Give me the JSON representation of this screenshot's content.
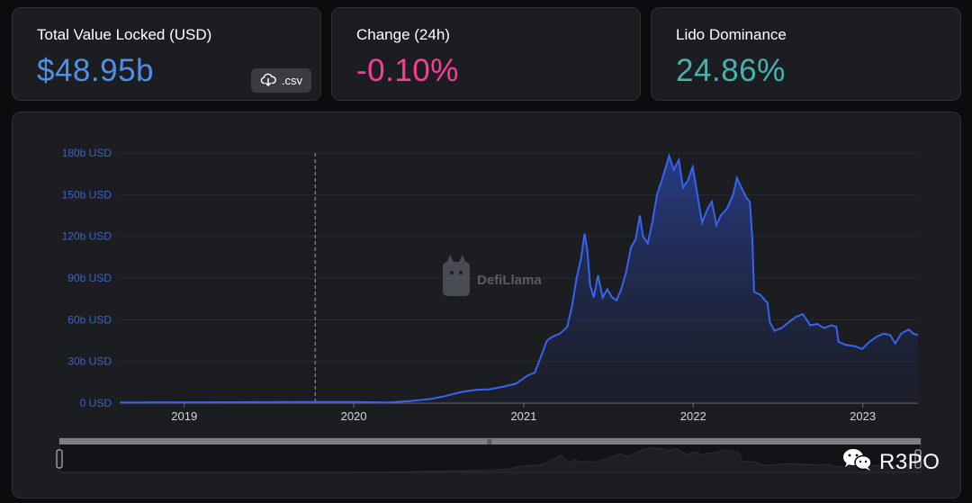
{
  "stats": {
    "tvl": {
      "label": "Total Value Locked (USD)",
      "value": "$48.95b",
      "color": "#4f8fea"
    },
    "change": {
      "label": "Change (24h)",
      "value": "-0.10%",
      "color": "#fd3c99"
    },
    "dominance": {
      "label": "Lido Dominance",
      "value": "24.86%",
      "color": "#46b3b3"
    }
  },
  "csv_button": {
    "label": ".csv",
    "icon": "cloud-download-icon"
  },
  "watermark_brand": "DefiLlama",
  "overlay_watermark": {
    "text": "R3PO",
    "icon": "wechat-icon"
  },
  "chart_data": {
    "type": "area",
    "ytick_labels": [
      "0 USD",
      "30b USD",
      "60b USD",
      "90b USD",
      "120b USD",
      "150b USD",
      "180b USD"
    ],
    "ylim": [
      0,
      180
    ],
    "xtick_labels": [
      "2019",
      "2020",
      "2021",
      "2022",
      "2023"
    ],
    "xlim": [
      "2018-08-15",
      "2023-04-30"
    ],
    "series": [
      {
        "values_unit": "billion USD",
        "points": [
          [
            "2018-08-15",
            0.5
          ],
          [
            "2019-01-01",
            0.6
          ],
          [
            "2019-06-01",
            0.7
          ],
          [
            "2019-10-10",
            0.8
          ],
          [
            "2020-01-01",
            0.8
          ],
          [
            "2020-03-15",
            0.5
          ],
          [
            "2020-05-01",
            1.5
          ],
          [
            "2020-06-15",
            3.0
          ],
          [
            "2020-07-15",
            5.0
          ],
          [
            "2020-08-20",
            8.0
          ],
          [
            "2020-09-20",
            9.5
          ],
          [
            "2020-10-20",
            10.0
          ],
          [
            "2020-11-20",
            12.0
          ],
          [
            "2020-12-15",
            14.0
          ],
          [
            "2021-01-10",
            20.0
          ],
          [
            "2021-01-25",
            22.0
          ],
          [
            "2021-02-10",
            36.0
          ],
          [
            "2021-02-20",
            45.0
          ],
          [
            "2021-03-05",
            48.0
          ],
          [
            "2021-03-20",
            50.0
          ],
          [
            "2021-04-05",
            55.0
          ],
          [
            "2021-04-15",
            70.0
          ],
          [
            "2021-04-25",
            90.0
          ],
          [
            "2021-05-05",
            105.0
          ],
          [
            "2021-05-12",
            122.0
          ],
          [
            "2021-05-18",
            110.0
          ],
          [
            "2021-05-24",
            85.0
          ],
          [
            "2021-06-01",
            76.0
          ],
          [
            "2021-06-10",
            92.0
          ],
          [
            "2021-06-20",
            76.0
          ],
          [
            "2021-06-30",
            82.0
          ],
          [
            "2021-07-10",
            76.0
          ],
          [
            "2021-07-20",
            74.0
          ],
          [
            "2021-07-30",
            82.0
          ],
          [
            "2021-08-10",
            95.0
          ],
          [
            "2021-08-20",
            112.0
          ],
          [
            "2021-08-30",
            118.0
          ],
          [
            "2021-09-08",
            135.0
          ],
          [
            "2021-09-15",
            120.0
          ],
          [
            "2021-09-25",
            115.0
          ],
          [
            "2021-10-05",
            130.0
          ],
          [
            "2021-10-15",
            150.0
          ],
          [
            "2021-10-25",
            160.0
          ],
          [
            "2021-11-05",
            172.0
          ],
          [
            "2021-11-10",
            178.0
          ],
          [
            "2021-11-20",
            168.0
          ],
          [
            "2021-12-01",
            175.0
          ],
          [
            "2021-12-10",
            155.0
          ],
          [
            "2021-12-20",
            160.0
          ],
          [
            "2021-12-31",
            170.0
          ],
          [
            "2022-01-10",
            150.0
          ],
          [
            "2022-01-20",
            130.0
          ],
          [
            "2022-02-01",
            140.0
          ],
          [
            "2022-02-10",
            145.0
          ],
          [
            "2022-02-20",
            128.0
          ],
          [
            "2022-03-01",
            135.0
          ],
          [
            "2022-03-15",
            140.0
          ],
          [
            "2022-03-28",
            150.0
          ],
          [
            "2022-04-05",
            162.0
          ],
          [
            "2022-04-15",
            155.0
          ],
          [
            "2022-04-25",
            148.0
          ],
          [
            "2022-05-03",
            145.0
          ],
          [
            "2022-05-08",
            120.0
          ],
          [
            "2022-05-12",
            80.0
          ],
          [
            "2022-05-25",
            78.0
          ],
          [
            "2022-06-10",
            72.0
          ],
          [
            "2022-06-15",
            58.0
          ],
          [
            "2022-06-25",
            52.0
          ],
          [
            "2022-07-10",
            54.0
          ],
          [
            "2022-07-25",
            58.0
          ],
          [
            "2022-08-10",
            62.0
          ],
          [
            "2022-08-25",
            64.0
          ],
          [
            "2022-09-10",
            56.0
          ],
          [
            "2022-09-25",
            57.0
          ],
          [
            "2022-10-10",
            54.0
          ],
          [
            "2022-10-25",
            56.0
          ],
          [
            "2022-11-05",
            55.0
          ],
          [
            "2022-11-10",
            44.0
          ],
          [
            "2022-11-25",
            42.0
          ],
          [
            "2022-12-15",
            41.0
          ],
          [
            "2022-12-31",
            39.0
          ],
          [
            "2023-01-15",
            44.0
          ],
          [
            "2023-02-01",
            48.0
          ],
          [
            "2023-02-15",
            50.0
          ],
          [
            "2023-03-01",
            49.0
          ],
          [
            "2023-03-12",
            43.0
          ],
          [
            "2023-03-25",
            50.0
          ],
          [
            "2023-04-10",
            53.0
          ],
          [
            "2023-04-20",
            50.0
          ],
          [
            "2023-04-30",
            49.0
          ]
        ]
      }
    ],
    "marker_date": "2019-10-10",
    "colors": {
      "line": "#3763f0",
      "grid": "#2a2c31",
      "tick_text": "#3b63c7",
      "axis_text": "#d7d7d7"
    },
    "brush": {
      "handle_label": "|||"
    }
  }
}
